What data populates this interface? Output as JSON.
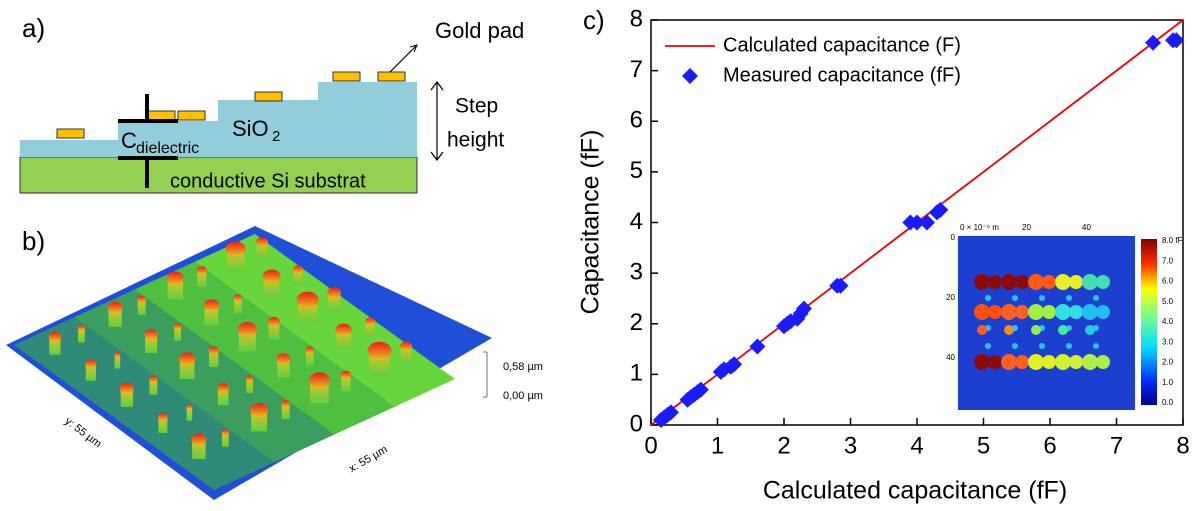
{
  "panel_a": {
    "label": "a)",
    "gold_pad": "Gold pad",
    "step_height": [
      "Step",
      "height"
    ],
    "capacitor": {
      "main": "C",
      "sub": "dielectric"
    },
    "oxide": {
      "main": "SiO",
      "sub": "2"
    },
    "substrate": "conductive Si substrat"
  },
  "panel_b": {
    "label": "b)",
    "z_labels": [
      "0,58 µm",
      "0,00 µm"
    ],
    "y_axis": "y: 55 µm",
    "x_axis": "x: 55 µm"
  },
  "chart_data": {
    "type": "scatter",
    "panel_label": "c)",
    "x_label": "Calculated capacitance (fF)",
    "y_label": "Capacitance (fF)",
    "xlim": [
      0,
      8
    ],
    "ylim": [
      0,
      8
    ],
    "xticks": [
      0,
      1,
      2,
      3,
      4,
      5,
      6,
      7,
      8
    ],
    "yticks": [
      0,
      1,
      2,
      3,
      4,
      5,
      6,
      7,
      8
    ],
    "legend": "upper left",
    "series": [
      {
        "name": "Calculated capacitance (F)",
        "color": "#e8000b",
        "style": "line",
        "x": [
          0,
          8
        ],
        "values": [
          0,
          8
        ]
      },
      {
        "name": "Measured capacitance (fF)",
        "color": "#1a1aff",
        "style": "marker",
        "x": [
          0.15,
          0.2,
          0.25,
          0.3,
          0.55,
          0.6,
          0.65,
          0.7,
          0.75,
          1.05,
          1.1,
          1.2,
          1.25,
          1.6,
          2.0,
          2.05,
          2.1,
          2.2,
          2.25,
          2.3,
          2.8,
          2.85,
          3.9,
          4.0,
          4.15,
          4.3,
          4.35,
          7.55,
          7.85,
          7.9
        ],
        "values": [
          0.1,
          0.15,
          0.2,
          0.25,
          0.5,
          0.55,
          0.6,
          0.65,
          0.7,
          1.05,
          1.1,
          1.15,
          1.2,
          1.55,
          1.95,
          2.0,
          2.05,
          2.1,
          2.2,
          2.3,
          2.75,
          2.75,
          4.0,
          4.0,
          4.0,
          4.2,
          4.25,
          7.55,
          7.6,
          7.6
        ]
      }
    ]
  },
  "inset": {
    "x_unit": "0 × 10⁻⁶ m",
    "x_ticks": [
      "20",
      "40"
    ],
    "y_ticks": [
      "0",
      "20",
      "40"
    ],
    "colorbar": [
      "8.0 fF",
      "7.0",
      "6.0",
      "5.0",
      "4.0",
      "3.0",
      "2.0",
      "1.0",
      "0.0"
    ]
  }
}
